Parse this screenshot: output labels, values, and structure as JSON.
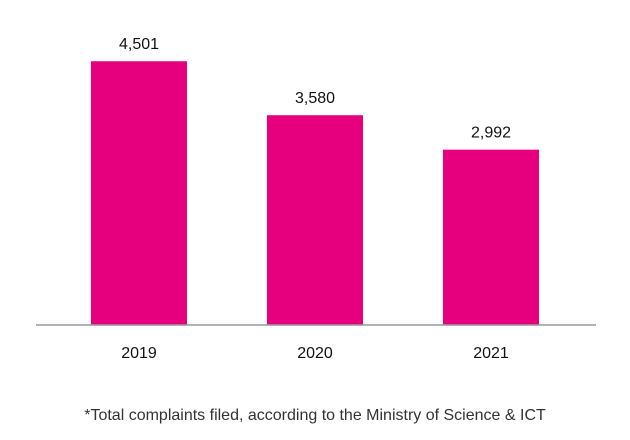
{
  "chart_data": {
    "type": "bar",
    "categories": [
      "2019",
      "2020",
      "2021"
    ],
    "values": [
      4501,
      3580,
      2992
    ],
    "value_labels": [
      "4,501",
      "3,580",
      "2,992"
    ],
    "title": "",
    "xlabel": "",
    "ylabel": "",
    "ylim": [
      0,
      5000
    ],
    "grid": false,
    "legend": "none",
    "footnote": "*Total complaints filed, according to the Ministry of Science & ICT",
    "colors": {
      "bar": "#E6007E",
      "axis": "#999999",
      "text": "#111111"
    }
  }
}
